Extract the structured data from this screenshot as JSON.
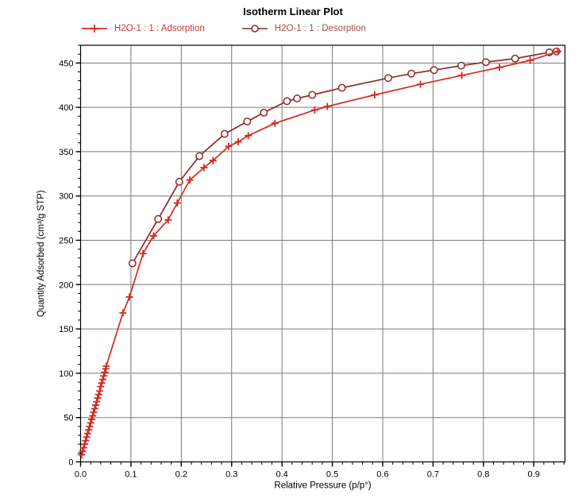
{
  "chart": {
    "title": "Isotherm Linear Plot",
    "legend": [
      {
        "label": "H2O-1 : 1 : Adsorption",
        "marker": "plus",
        "color": "#d42a22",
        "text_color": "#d03434"
      },
      {
        "label": "H2O-1 : 1 : Desorption",
        "marker": "circle",
        "color": "#8f2a2a",
        "text_color": "#a84a4a"
      }
    ]
  },
  "chart_data": {
    "type": "line",
    "title": "Isotherm Linear Plot",
    "xlabel": "Relative Pressure (p/p°)",
    "ylabel": "Quantity Adsorbed (cm³/g STP)",
    "xlim": [
      0,
      0.962
    ],
    "ylim": [
      0,
      470
    ],
    "x_major_ticks": [
      0.0,
      0.1,
      0.2,
      0.3,
      0.4,
      0.5,
      0.6,
      0.7,
      0.8,
      0.9
    ],
    "x_minor_step": 0.02,
    "y_major_ticks": [
      0,
      50,
      100,
      150,
      200,
      250,
      300,
      350,
      400,
      450
    ],
    "y_minor_step": 10,
    "grid": "major-both",
    "grid_color": "#7a7a7a",
    "frame_color": "#000000",
    "legend_position": "top",
    "series": [
      {
        "name": "H2O-1 : 1 : Adsorption",
        "marker": "plus",
        "color": "#d42a22",
        "points": [
          [
            0.002,
            8
          ],
          [
            0.004,
            12
          ],
          [
            0.006,
            16
          ],
          [
            0.008,
            20
          ],
          [
            0.01,
            24
          ],
          [
            0.012,
            28
          ],
          [
            0.014,
            32
          ],
          [
            0.016,
            36
          ],
          [
            0.018,
            40
          ],
          [
            0.02,
            44
          ],
          [
            0.022,
            48
          ],
          [
            0.024,
            52
          ],
          [
            0.026,
            56
          ],
          [
            0.028,
            60
          ],
          [
            0.03,
            64
          ],
          [
            0.032,
            68
          ],
          [
            0.034,
            72
          ],
          [
            0.036,
            76
          ],
          [
            0.038,
            80
          ],
          [
            0.04,
            85
          ],
          [
            0.042,
            89
          ],
          [
            0.044,
            93
          ],
          [
            0.046,
            97
          ],
          [
            0.048,
            101
          ],
          [
            0.05,
            105
          ],
          [
            0.051,
            108
          ],
          [
            0.084,
            168
          ],
          [
            0.097,
            186
          ],
          [
            0.124,
            235
          ],
          [
            0.145,
            255
          ],
          [
            0.174,
            273
          ],
          [
            0.192,
            292
          ],
          [
            0.217,
            318
          ],
          [
            0.245,
            332
          ],
          [
            0.263,
            340
          ],
          [
            0.294,
            356
          ],
          [
            0.313,
            361
          ],
          [
            0.333,
            368
          ],
          [
            0.386,
            382
          ],
          [
            0.465,
            397
          ],
          [
            0.49,
            401
          ],
          [
            0.584,
            414
          ],
          [
            0.675,
            426
          ],
          [
            0.757,
            436
          ],
          [
            0.832,
            445
          ],
          [
            0.893,
            453
          ],
          [
            0.948,
            463
          ]
        ]
      },
      {
        "name": "H2O-1 : 1 : Desorption",
        "marker": "circle",
        "color": "#8f2a2a",
        "points": [
          [
            0.103,
            224
          ],
          [
            0.154,
            274
          ],
          [
            0.196,
            316
          ],
          [
            0.236,
            345
          ],
          [
            0.286,
            370
          ],
          [
            0.331,
            384
          ],
          [
            0.364,
            394
          ],
          [
            0.41,
            407
          ],
          [
            0.43,
            410
          ],
          [
            0.46,
            414
          ],
          [
            0.519,
            422
          ],
          [
            0.611,
            433
          ],
          [
            0.657,
            438
          ],
          [
            0.702,
            442
          ],
          [
            0.756,
            447
          ],
          [
            0.805,
            451
          ],
          [
            0.863,
            455
          ],
          [
            0.931,
            462
          ],
          [
            0.945,
            463
          ]
        ]
      }
    ]
  }
}
